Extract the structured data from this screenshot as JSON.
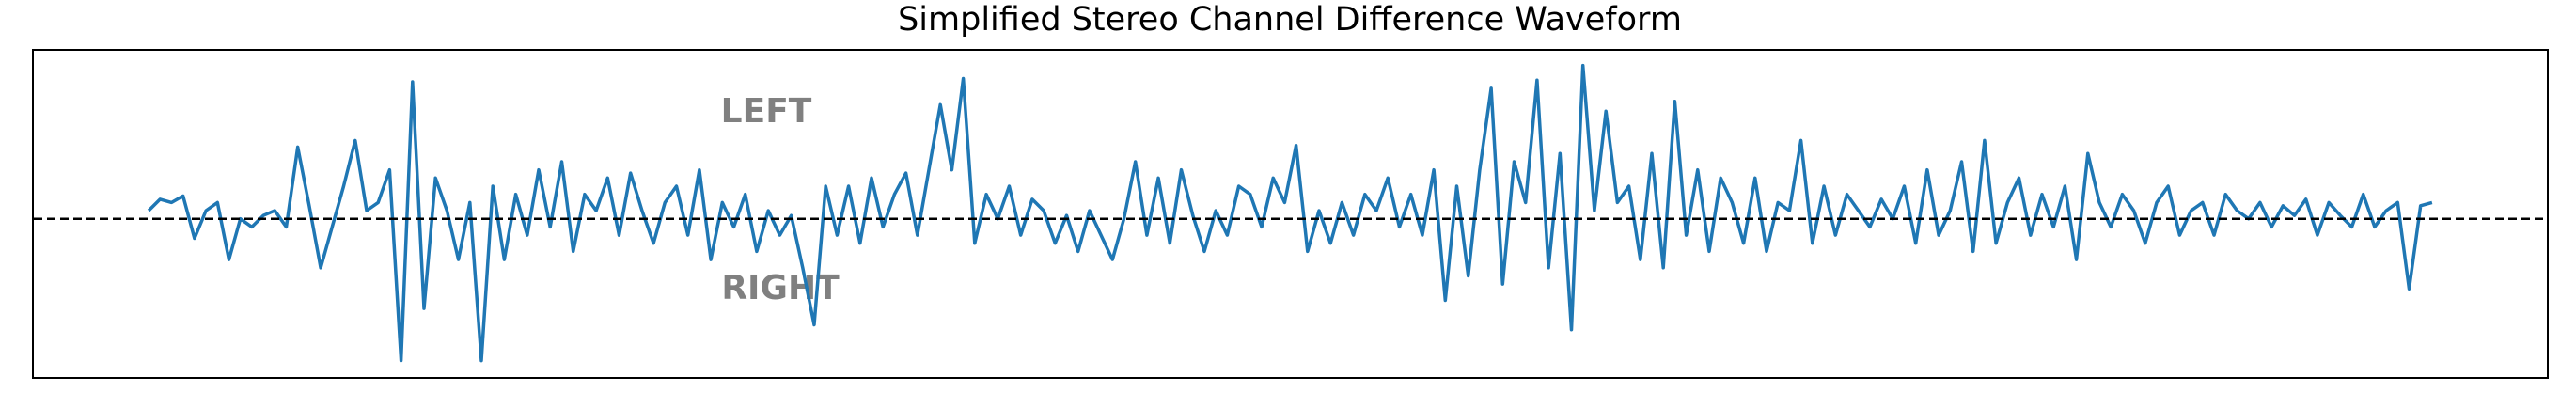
{
  "chart_data": {
    "type": "line",
    "title": "Simplified Stereo Channel Difference Waveform",
    "annotations": [
      "LEFT",
      "RIGHT"
    ],
    "color": "#1f77b4",
    "reference_line": 0,
    "xlim": [
      -10,
      209
    ],
    "ylim": [
      -0.97,
      1.03
    ],
    "values": [
      0.05,
      0.12,
      0.1,
      0.14,
      -0.12,
      0.05,
      0.1,
      -0.25,
      0.0,
      -0.05,
      0.02,
      0.05,
      -0.05,
      0.44,
      0.08,
      -0.3,
      -0.05,
      0.2,
      0.48,
      0.05,
      0.1,
      0.3,
      -0.87,
      0.84,
      -0.55,
      0.25,
      0.05,
      -0.25,
      0.1,
      -0.87,
      0.2,
      -0.25,
      0.15,
      -0.1,
      0.3,
      -0.05,
      0.35,
      -0.2,
      0.15,
      0.05,
      0.25,
      -0.1,
      0.28,
      0.05,
      -0.15,
      0.1,
      0.2,
      -0.1,
      0.3,
      -0.25,
      0.1,
      -0.05,
      0.15,
      -0.2,
      0.05,
      -0.1,
      0.02,
      -0.3,
      -0.65,
      0.2,
      -0.1,
      0.2,
      -0.15,
      0.25,
      -0.05,
      0.15,
      0.28,
      -0.1,
      0.3,
      0.7,
      0.3,
      0.86,
      -0.15,
      0.15,
      0.0,
      0.2,
      -0.1,
      0.12,
      0.05,
      -0.15,
      0.02,
      -0.2,
      0.05,
      -0.1,
      -0.25,
      0.0,
      0.35,
      -0.1,
      0.25,
      -0.15,
      0.3,
      0.02,
      -0.2,
      0.05,
      -0.1,
      0.2,
      0.15,
      -0.05,
      0.25,
      0.1,
      0.45,
      -0.2,
      0.05,
      -0.15,
      0.1,
      -0.1,
      0.15,
      0.05,
      0.25,
      -0.05,
      0.15,
      -0.1,
      0.3,
      -0.5,
      0.2,
      -0.35,
      0.3,
      0.8,
      -0.4,
      0.35,
      0.1,
      0.85,
      -0.3,
      0.4,
      -0.68,
      0.94,
      0.05,
      0.66,
      0.1,
      0.2,
      -0.25,
      0.4,
      -0.3,
      0.72,
      -0.1,
      0.3,
      -0.2,
      0.25,
      0.1,
      -0.15,
      0.25,
      -0.2,
      0.1,
      0.05,
      0.48,
      -0.15,
      0.2,
      -0.1,
      0.15,
      0.05,
      -0.05,
      0.12,
      0.0,
      0.2,
      -0.15,
      0.3,
      -0.1,
      0.05,
      0.35,
      -0.2,
      0.48,
      -0.15,
      0.1,
      0.25,
      -0.1,
      0.15,
      -0.05,
      0.2,
      -0.25,
      0.4,
      0.1,
      -0.05,
      0.15,
      0.05,
      -0.15,
      0.1,
      0.2,
      -0.1,
      0.05,
      0.1,
      -0.1,
      0.15,
      0.05,
      0.0,
      0.1,
      -0.05,
      0.08,
      0.02,
      0.12,
      -0.1,
      0.1,
      0.02,
      -0.05,
      0.15,
      -0.05,
      0.05,
      0.1,
      -0.43,
      0.08,
      0.1
    ]
  }
}
